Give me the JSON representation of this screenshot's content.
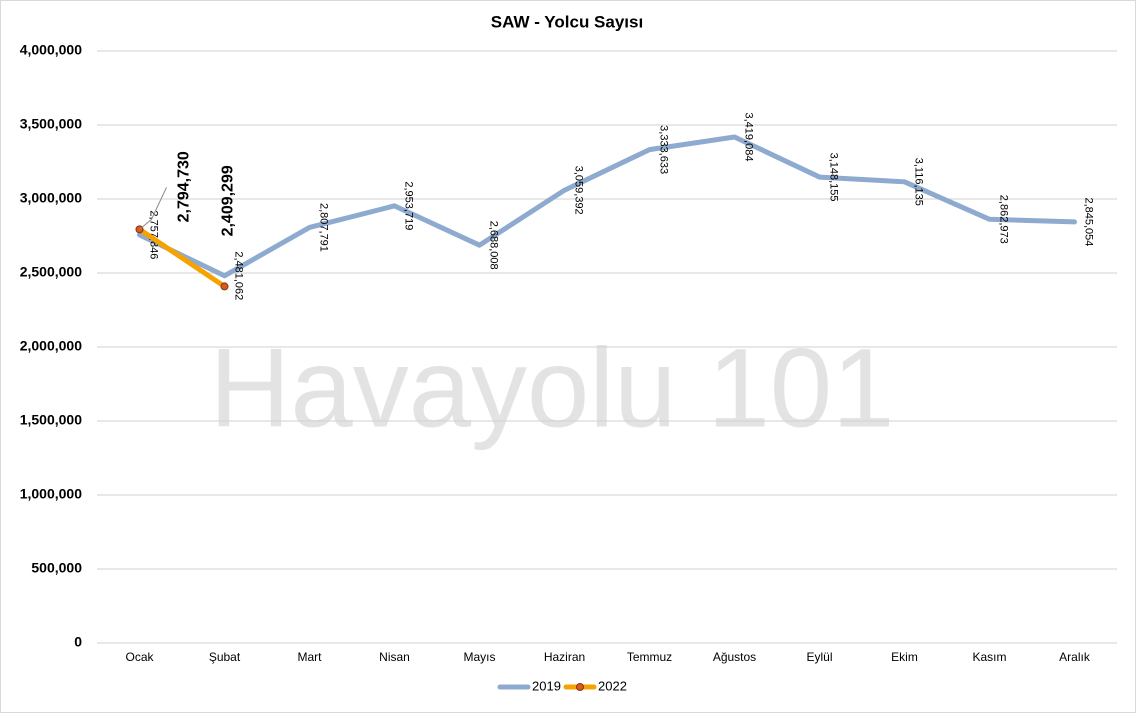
{
  "chart_data": {
    "type": "line",
    "title": "SAW - Yolcu Sayısı",
    "watermark": "Havayolu 101",
    "categories": [
      "Ocak",
      "Şubat",
      "Mart",
      "Nisan",
      "Mayıs",
      "Haziran",
      "Temmuz",
      "Ağustos",
      "Eylül",
      "Ekim",
      "Kasım",
      "Aralık"
    ],
    "series": [
      {
        "name": "2019",
        "color": "#8eaacf",
        "values": [
          2757846,
          2481062,
          2807791,
          2953719,
          2688008,
          3059392,
          3333633,
          3419084,
          3148155,
          3116135,
          2862973,
          2845054
        ],
        "value_labels": [
          "2,757,846",
          "2,481,062",
          "2,807,791",
          "2,953,719",
          "2,688,008",
          "3,059,392",
          "3,333,633",
          "3,419,084",
          "3,148,155",
          "3,116,135",
          "2,862,973",
          "2,845,054"
        ]
      },
      {
        "name": "2022",
        "color": "#f5a300",
        "marker_color": "#e0561f",
        "values": [
          2794730,
          2409299,
          null,
          null,
          null,
          null,
          null,
          null,
          null,
          null,
          null,
          null
        ],
        "value_labels": [
          "2,794,730",
          "2,409,299",
          null,
          null,
          null,
          null,
          null,
          null,
          null,
          null,
          null,
          null
        ]
      }
    ],
    "ylim": [
      0,
      4000000
    ],
    "yticks": [
      0,
      {
        "value": 500000,
        "label": "500,000"
      },
      {
        "value": 1000000,
        "label": "1,000,000"
      },
      {
        "value": 1500000,
        "label": "1,500,000"
      },
      {
        "value": 2000000,
        "label": "2,000,000"
      },
      {
        "value": 2500000,
        "label": "2,500,000"
      },
      {
        "value": 3000000,
        "label": "3,000,000"
      },
      {
        "value": 3500000,
        "label": "3,500,000"
      },
      {
        "value": 4000000,
        "label": "4,000,000"
      }
    ],
    "grid": true,
    "legend": "bottom"
  }
}
